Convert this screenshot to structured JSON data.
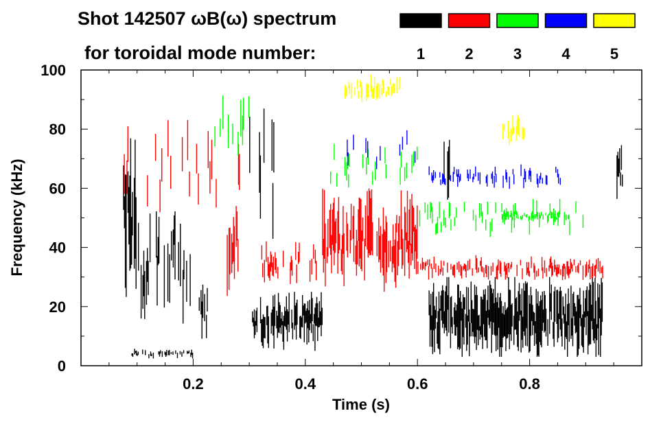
{
  "chart_data": {
    "type": "heatmap",
    "title_line1": "Shot 142507 ωB(ω) spectrum",
    "title_line2": "for toroidal mode number:",
    "xlabel": "Time (s)",
    "ylabel": "Frequency (kHz)",
    "xlim": [
      0.0,
      1.0
    ],
    "ylim": [
      0,
      100
    ],
    "xticks": [
      "0.2",
      "0.4",
      "0.6",
      "0.8"
    ],
    "xtick_values": [
      0.2,
      0.4,
      0.6,
      0.8
    ],
    "yticks": [
      "0",
      "20",
      "40",
      "60",
      "80",
      "100"
    ],
    "ytick_values": [
      0,
      20,
      40,
      60,
      80,
      100
    ],
    "legend": [
      {
        "mode": "1",
        "color": "#000000"
      },
      {
        "mode": "2",
        "color": "#ff0000"
      },
      {
        "mode": "3",
        "color": "#00ff00"
      },
      {
        "mode": "4",
        "color": "#0000ff"
      },
      {
        "mode": "5",
        "color": "#ffff00"
      }
    ],
    "regions": [
      {
        "mode": 1,
        "t": [
          0.075,
          0.1
        ],
        "f": [
          20,
          78
        ],
        "density": 0.9
      },
      {
        "mode": 1,
        "t": [
          0.1,
          0.2
        ],
        "f": [
          5,
          65
        ],
        "density": 0.35
      },
      {
        "mode": 1,
        "t": [
          0.09,
          0.2
        ],
        "f": [
          2,
          6
        ],
        "density": 0.5
      },
      {
        "mode": 1,
        "t": [
          0.21,
          0.225
        ],
        "f": [
          5,
          30
        ],
        "density": 0.6
      },
      {
        "mode": 1,
        "t": [
          0.3,
          0.345
        ],
        "f": [
          30,
          100
        ],
        "density": 0.25
      },
      {
        "mode": 1,
        "t": [
          0.305,
          0.43
        ],
        "f": [
          5,
          25
        ],
        "density": 0.85
      },
      {
        "mode": 1,
        "t": [
          0.62,
          0.93
        ],
        "f": [
          3,
          30
        ],
        "density": 0.95
      },
      {
        "mode": 1,
        "t": [
          0.645,
          0.66
        ],
        "f": [
          40,
          90
        ],
        "density": 0.4
      },
      {
        "mode": 1,
        "t": [
          0.955,
          0.965
        ],
        "f": [
          55,
          80
        ],
        "density": 0.9
      },
      {
        "mode": 2,
        "t": [
          0.07,
          0.3
        ],
        "f": [
          40,
          95
        ],
        "density": 0.15
      },
      {
        "mode": 2,
        "t": [
          0.26,
          0.28
        ],
        "f": [
          20,
          60
        ],
        "density": 0.7
      },
      {
        "mode": 2,
        "t": [
          0.32,
          0.43
        ],
        "f": [
          25,
          45
        ],
        "density": 0.35
      },
      {
        "mode": 2,
        "t": [
          0.43,
          0.6
        ],
        "f": [
          25,
          60
        ],
        "density": 0.75
      },
      {
        "mode": 2,
        "t": [
          0.6,
          0.93
        ],
        "f": [
          28,
          38
        ],
        "density": 0.5
      },
      {
        "mode": 3,
        "t": [
          0.23,
          0.3
        ],
        "f": [
          60,
          100
        ],
        "density": 0.25
      },
      {
        "mode": 3,
        "t": [
          0.43,
          0.6
        ],
        "f": [
          55,
          80
        ],
        "density": 0.15
      },
      {
        "mode": 3,
        "t": [
          0.6,
          0.9
        ],
        "f": [
          40,
          60
        ],
        "density": 0.2
      },
      {
        "mode": 3,
        "t": [
          0.75,
          0.87
        ],
        "f": [
          48,
          53
        ],
        "density": 0.6
      },
      {
        "mode": 4,
        "t": [
          0.45,
          0.62
        ],
        "f": [
          60,
          85
        ],
        "density": 0.12
      },
      {
        "mode": 4,
        "t": [
          0.62,
          0.86
        ],
        "f": [
          58,
          70
        ],
        "density": 0.3
      },
      {
        "mode": 5,
        "t": [
          0.47,
          0.57
        ],
        "f": [
          88,
          100
        ],
        "density": 0.5
      },
      {
        "mode": 5,
        "t": [
          0.745,
          0.79
        ],
        "f": [
          72,
          86
        ],
        "density": 0.5
      }
    ]
  }
}
